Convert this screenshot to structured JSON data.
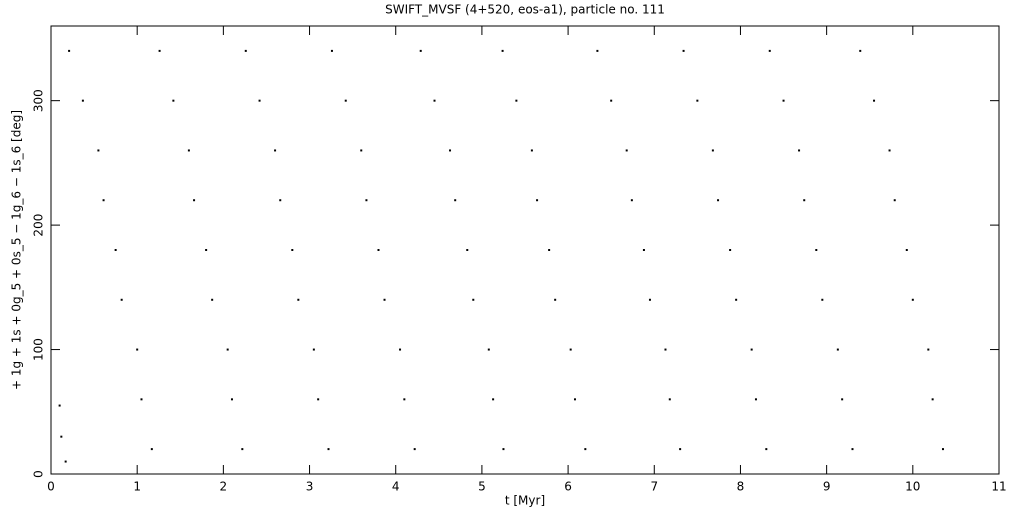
{
  "chart_data": {
    "type": "scatter",
    "title": "SWIFT_MVSF (4+520, eos-a1), particle no. 111",
    "x_label": "t [Myr]",
    "y_label": "+ 1g + 1s + 0g_5 + 0s_5 − 1g_6 − 1s_6 [deg]",
    "xlim": [
      0,
      11
    ],
    "ylim": [
      0,
      360
    ],
    "xticks": [
      0,
      1,
      2,
      3,
      4,
      5,
      6,
      7,
      8,
      9,
      10,
      11
    ],
    "yticks": [
      0,
      100,
      200,
      300
    ],
    "color": "#000000",
    "x": [
      0.1,
      0.12,
      0.17,
      0.21,
      0.37,
      0.55,
      0.61,
      0.75,
      0.82,
      1.0,
      1.05,
      1.17,
      1.26,
      1.42,
      1.6,
      1.66,
      1.8,
      1.87,
      2.05,
      2.1,
      2.22,
      2.26,
      2.42,
      2.6,
      2.66,
      2.8,
      2.87,
      3.05,
      3.1,
      3.22,
      3.26,
      3.42,
      3.6,
      3.66,
      3.8,
      3.87,
      4.05,
      4.1,
      4.22,
      4.29,
      4.45,
      4.63,
      4.69,
      4.83,
      4.9,
      5.08,
      5.13,
      5.25,
      5.24,
      5.4,
      5.58,
      5.64,
      5.78,
      5.85,
      6.03,
      6.08,
      6.2,
      6.34,
      6.5,
      6.68,
      6.74,
      6.88,
      6.95,
      7.13,
      7.18,
      7.3,
      7.34,
      7.5,
      7.68,
      7.74,
      7.88,
      7.95,
      8.13,
      8.18,
      8.3,
      8.34,
      8.5,
      8.68,
      8.74,
      8.88,
      8.95,
      9.13,
      9.18,
      9.3,
      9.39,
      9.55,
      9.73,
      9.79,
      9.93,
      10.0,
      10.18,
      10.23,
      10.35
    ],
    "values": [
      55,
      30,
      10,
      340,
      300,
      260,
      220,
      180,
      140,
      100,
      60,
      20,
      340,
      300,
      260,
      220,
      180,
      140,
      100,
      60,
      20,
      340,
      300,
      260,
      220,
      180,
      140,
      100,
      60,
      20,
      340,
      300,
      260,
      220,
      180,
      140,
      100,
      60,
      20,
      340,
      300,
      260,
      220,
      180,
      140,
      100,
      60,
      20,
      340,
      300,
      260,
      220,
      180,
      140,
      100,
      60,
      20,
      340,
      300,
      260,
      220,
      180,
      140,
      100,
      60,
      20,
      340,
      300,
      260,
      220,
      180,
      140,
      100,
      60,
      20,
      340,
      300,
      260,
      220,
      180,
      140,
      100,
      60,
      20,
      340,
      300,
      260,
      220,
      180,
      140,
      100,
      60,
      20
    ]
  }
}
